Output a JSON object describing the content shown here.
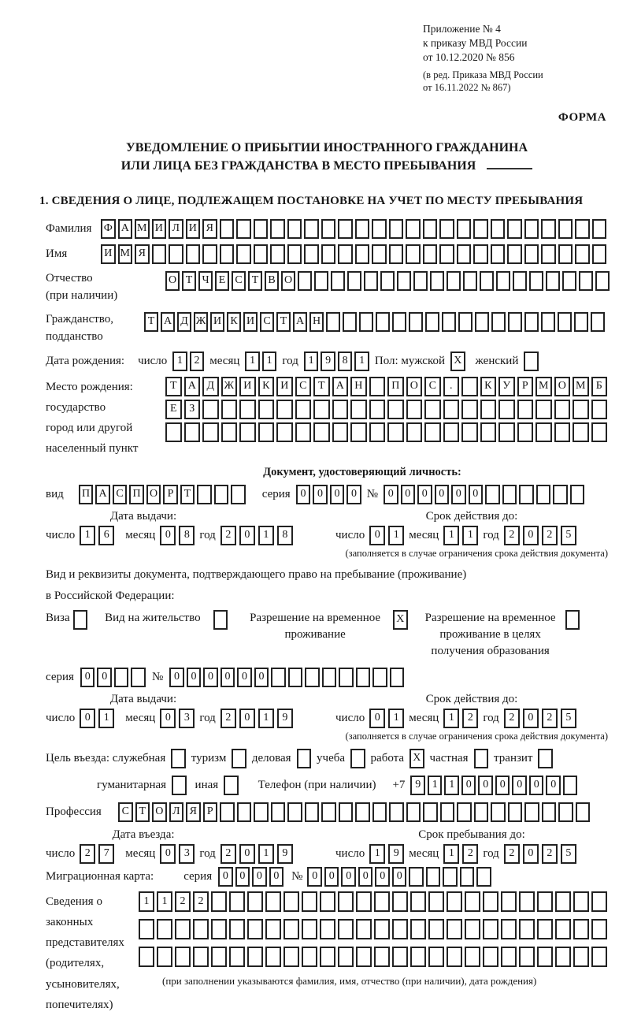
{
  "common": {
    "date_labels": {
      "day": "число",
      "month": "месяц",
      "year": "год"
    }
  },
  "header": {
    "appendix_lines": [
      "Приложение № 4",
      "к приказу МВД России",
      "от 10.12.2020 № 856"
    ],
    "edition_lines": [
      "(в ред. Приказа МВД России",
      "от 16.11.2022 № 867)"
    ],
    "form_label": "ФОРМА"
  },
  "title": {
    "line1": "УВЕДОМЛЕНИЕ О ПРИБЫТИИ ИНОСТРАННОГО ГРАЖДАНИНА",
    "line2": "ИЛИ ЛИЦА БЕЗ ГРАЖДАНСТВА В МЕСТО ПРЕБЫВАНИЯ"
  },
  "section1_heading": "1. СВЕДЕНИЯ О ЛИЦЕ, ПОДЛЕЖАЩЕМ ПОСТАНОВКЕ НА УЧЕТ ПО МЕСТУ ПРЕБЫВАНИЯ",
  "surname": {
    "label": "Фамилия",
    "cells": {
      "value": "ФАМИЛИЯ",
      "len": 30
    }
  },
  "firstname": {
    "label": "Имя",
    "cells": {
      "value": "ИМЯ",
      "len": 30
    }
  },
  "patronymic": {
    "label1": "Отчество",
    "label2": "(при наличии)",
    "cells": {
      "value": "ОТЧЕСТВО",
      "len": 27
    }
  },
  "citizenship": {
    "label1": "Гражданство,",
    "label2": "подданство",
    "cells": {
      "value": "ТАДЖИКИСТАН",
      "len": 28
    }
  },
  "birthdate": {
    "label": "Дата рождения:",
    "day": {
      "value": "12",
      "len": 2
    },
    "month": {
      "value": "11",
      "len": 2
    },
    "year": {
      "value": "1981",
      "len": 4
    },
    "sex_label": "Пол: мужской",
    "male": {
      "value": "X",
      "len": 1
    },
    "female_label": "женский",
    "female": {
      "value": "",
      "len": 1
    }
  },
  "birthplace": {
    "labels": [
      "Место рождения:",
      "государство",
      "город или другой",
      "населенный пункт"
    ],
    "row1": {
      "value": "ТАДЖИКИСТАН ПОС. КУРМОМБ",
      "len": 24
    },
    "row2": {
      "value": "ЕЗ",
      "len": 24
    },
    "row3": {
      "value": "",
      "len": 24
    }
  },
  "identity_doc": {
    "heading": "Документ, удостоверяющий личность:",
    "kind_label": "вид",
    "kind": {
      "value": "ПАСПОРТ",
      "len": 10
    },
    "series_label": "серия",
    "series": {
      "value": "0000",
      "len": 4
    },
    "number_label": "№",
    "number": {
      "value": "000000",
      "len": 12
    },
    "issue_label": "Дата выдачи:",
    "issue_day": {
      "value": "16",
      "len": 2
    },
    "issue_month": {
      "value": "08",
      "len": 2
    },
    "issue_year": {
      "value": "2018",
      "len": 4
    },
    "expiry_label": "Срок действия до:",
    "expiry_day": {
      "value": "01",
      "len": 2
    },
    "expiry_month": {
      "value": "11",
      "len": 2
    },
    "expiry_year": {
      "value": "2025",
      "len": 4
    },
    "note": "(заполняется в случае ограничения срока действия документа)"
  },
  "stay_doc": {
    "intro1": "Вид и реквизиты документа, подтверждающего право на пребывание (проживание)",
    "intro2": "в Российской Федерации:",
    "options": [
      {
        "label": "Виза",
        "box": {
          "value": "",
          "len": 1
        }
      },
      {
        "label": "Вид на жительство",
        "box": {
          "value": "",
          "len": 1
        }
      },
      {
        "label": "Разрешение на временное проживание",
        "box": {
          "value": "X",
          "len": 1
        }
      },
      {
        "label": "Разрешение на временное проживание в целях получения образования",
        "box": {
          "value": "",
          "len": 1
        }
      }
    ],
    "series_label": "серия",
    "series": {
      "value": "00",
      "len": 4
    },
    "number_label": "№",
    "number": {
      "value": "000000",
      "len": 14
    },
    "issue_label": "Дата выдачи:",
    "issue_day": {
      "value": "01",
      "len": 2
    },
    "issue_month": {
      "value": "03",
      "len": 2
    },
    "issue_year": {
      "value": "2019",
      "len": 4
    },
    "expiry_label": "Срок действия до:",
    "expiry_day": {
      "value": "01",
      "len": 2
    },
    "expiry_month": {
      "value": "12",
      "len": 2
    },
    "expiry_year": {
      "value": "2025",
      "len": 4
    },
    "note": "(заполняется в случае ограничения срока действия документа)"
  },
  "purpose": {
    "label": "Цель въезда: служебная",
    "opt1": {
      "value": "",
      "len": 1
    },
    "label2": "туризм",
    "opt2": {
      "value": "",
      "len": 1
    },
    "label3": "деловая",
    "opt3": {
      "value": "",
      "len": 1
    },
    "label4": "учеба",
    "opt4": {
      "value": "",
      "len": 1
    },
    "label5": "работа",
    "opt5": {
      "value": "X",
      "len": 1
    },
    "label6": "частная",
    "opt6": {
      "value": "",
      "len": 1
    },
    "label7": "транзит",
    "opt7": {
      "value": "",
      "len": 1
    },
    "label8": "гуманитарная",
    "opt8": {
      "value": "",
      "len": 1
    },
    "label9": "иная",
    "opt9": {
      "value": "",
      "len": 1
    }
  },
  "phone": {
    "label": "Телефон (при наличии)",
    "prefix": "+7",
    "cells": {
      "value": "911000000",
      "len": 10
    }
  },
  "profession": {
    "label": "Профессия",
    "cells": {
      "value": "СТОЛЯР",
      "len": 28
    }
  },
  "entry": {
    "date_label": "Дата въезда:",
    "day": {
      "value": "27",
      "len": 2
    },
    "month": {
      "value": "03",
      "len": 2
    },
    "year": {
      "value": "2019",
      "len": 4
    },
    "until_label": "Срок пребывания до:",
    "until_day": {
      "value": "19",
      "len": 2
    },
    "until_month": {
      "value": "12",
      "len": 2
    },
    "until_year": {
      "value": "2025",
      "len": 4
    }
  },
  "migration_card": {
    "label": "Миграционная карта:",
    "series_label": "серия",
    "series": {
      "value": "0000",
      "len": 4
    },
    "number_label": "№",
    "number": {
      "value": "000000",
      "len": 11
    }
  },
  "representatives": {
    "labels": [
      "Сведения о",
      "законных",
      "представителях",
      "(родителях,",
      "усыновителях,",
      "попечителях)"
    ],
    "row1": {
      "value": "1122",
      "len": 26
    },
    "row2": {
      "value": "",
      "len": 26
    },
    "row3": {
      "value": "",
      "len": 26
    },
    "caption": "(при заполнении указываются фамилия, имя, отчество (при наличии), дата рождения)"
  }
}
